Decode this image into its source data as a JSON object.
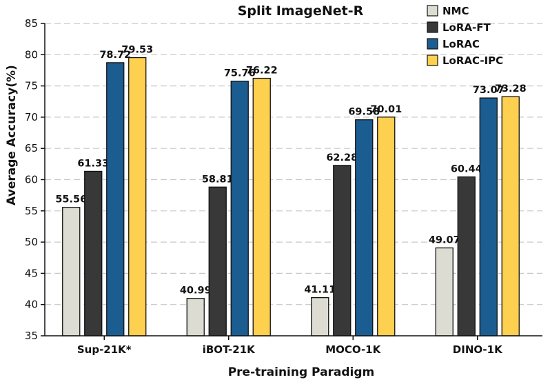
{
  "chart_data": {
    "type": "bar",
    "title": "Split ImageNet-R",
    "xlabel": "Pre-training Paradigm",
    "ylabel": "Average Accuracy(%)",
    "ylim": [
      35,
      85
    ],
    "yticks": [
      35,
      40,
      45,
      50,
      55,
      60,
      65,
      70,
      75,
      80,
      85
    ],
    "grid": "horizontal-dashed",
    "legend_position": "top-right",
    "categories": [
      "Sup-21K*",
      "iBOT-21K",
      "MOCO-1K",
      "DINO-1K"
    ],
    "series": [
      {
        "name": "NMC",
        "color": "#dcdcd2",
        "values": [
          55.56,
          40.99,
          41.11,
          49.07
        ],
        "labels": [
          "55.56",
          "40.99",
          "41.11",
          "49.07"
        ]
      },
      {
        "name": "LoRA-FT",
        "color": "#383838",
        "values": [
          61.33,
          58.81,
          62.28,
          60.44
        ],
        "labels": [
          "61.33",
          "58.81",
          "62.28",
          "60.44"
        ]
      },
      {
        "name": "LoRAC",
        "color": "#1c5d91",
        "values": [
          78.72,
          75.76,
          69.58,
          73.07
        ],
        "labels": [
          "78.72",
          "75.76",
          "69.58",
          "73.07"
        ]
      },
      {
        "name": "LoRAC-IPC",
        "color": "#fdd04f",
        "values": [
          79.53,
          76.22,
          70.01,
          73.28
        ],
        "labels": [
          "79.53",
          "76.22",
          "70.01",
          "73.28"
        ]
      }
    ]
  }
}
